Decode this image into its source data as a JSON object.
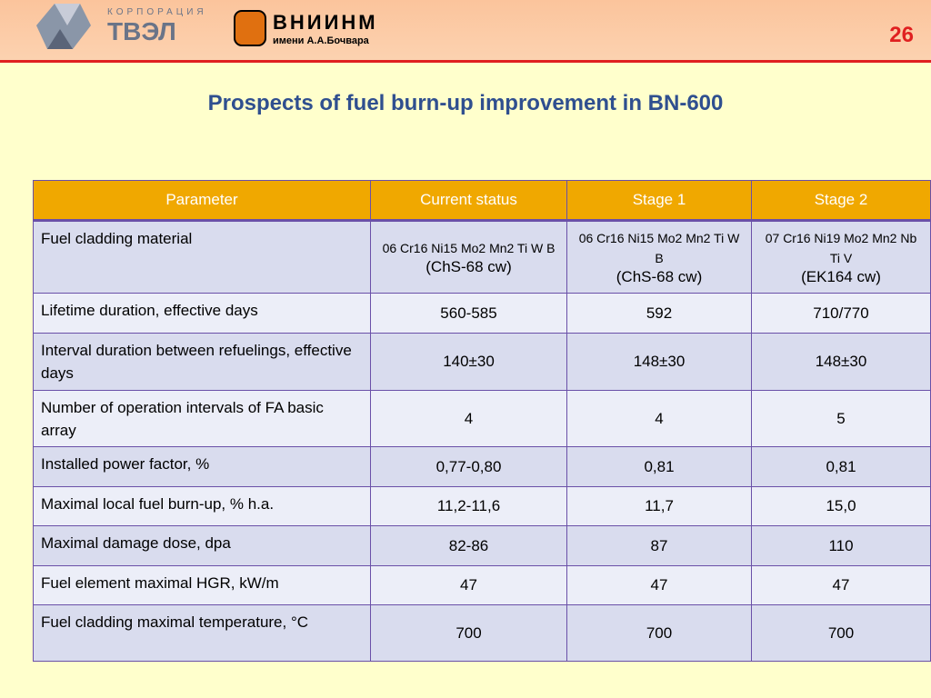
{
  "header": {
    "corp_label": "КОРПОРАЦИЯ",
    "corp_name": "ТВЭЛ",
    "institute_name": "ВНИИНМ",
    "institute_sub": "имени А.А.Бочвара",
    "page_number": "26"
  },
  "title": "Prospects of fuel burn-up improvement in BN-600",
  "table": {
    "columns": [
      "Parameter",
      "Current status",
      "Stage 1",
      "Stage 2"
    ],
    "rows": [
      [
        "Fuel cladding material",
        {
          "grade": "06 Cr16 Ni15 Mo2 Mn2 Ti W B",
          "name": "(ChS-68 cw)"
        },
        {
          "grade": "06 Cr16 Ni15 Mo2 Mn2 Ti W B",
          "name": "(ChS-68 cw)"
        },
        {
          "grade": "07 Cr16 Ni19 Mo2 Mn2 Nb Ti  V",
          "name": "(EK164 cw)"
        }
      ],
      [
        "Lifetime duration, effective days",
        "560-585",
        "592",
        "710/770"
      ],
      [
        "Interval duration between refuelings, effective days",
        "140±30",
        "148±30",
        "148±30"
      ],
      [
        "Number of operation intervals of FA basic array",
        "4",
        "4",
        "5"
      ],
      [
        "Installed power factor, %",
        "0,77-0,80",
        "0,81",
        "0,81"
      ],
      [
        "Maximal local fuel burn-up, % h.a.",
        "11,2-11,6",
        "11,7",
        "15,0"
      ],
      [
        "Maximal damage dose, dpa",
        "82-86",
        "87",
        "110"
      ],
      [
        "Fuel element maximal HGR, kW/m",
        "47",
        "47",
        "47"
      ],
      [
        "Fuel cladding maximal temperature, °C",
        "700",
        "700",
        "700"
      ]
    ]
  }
}
